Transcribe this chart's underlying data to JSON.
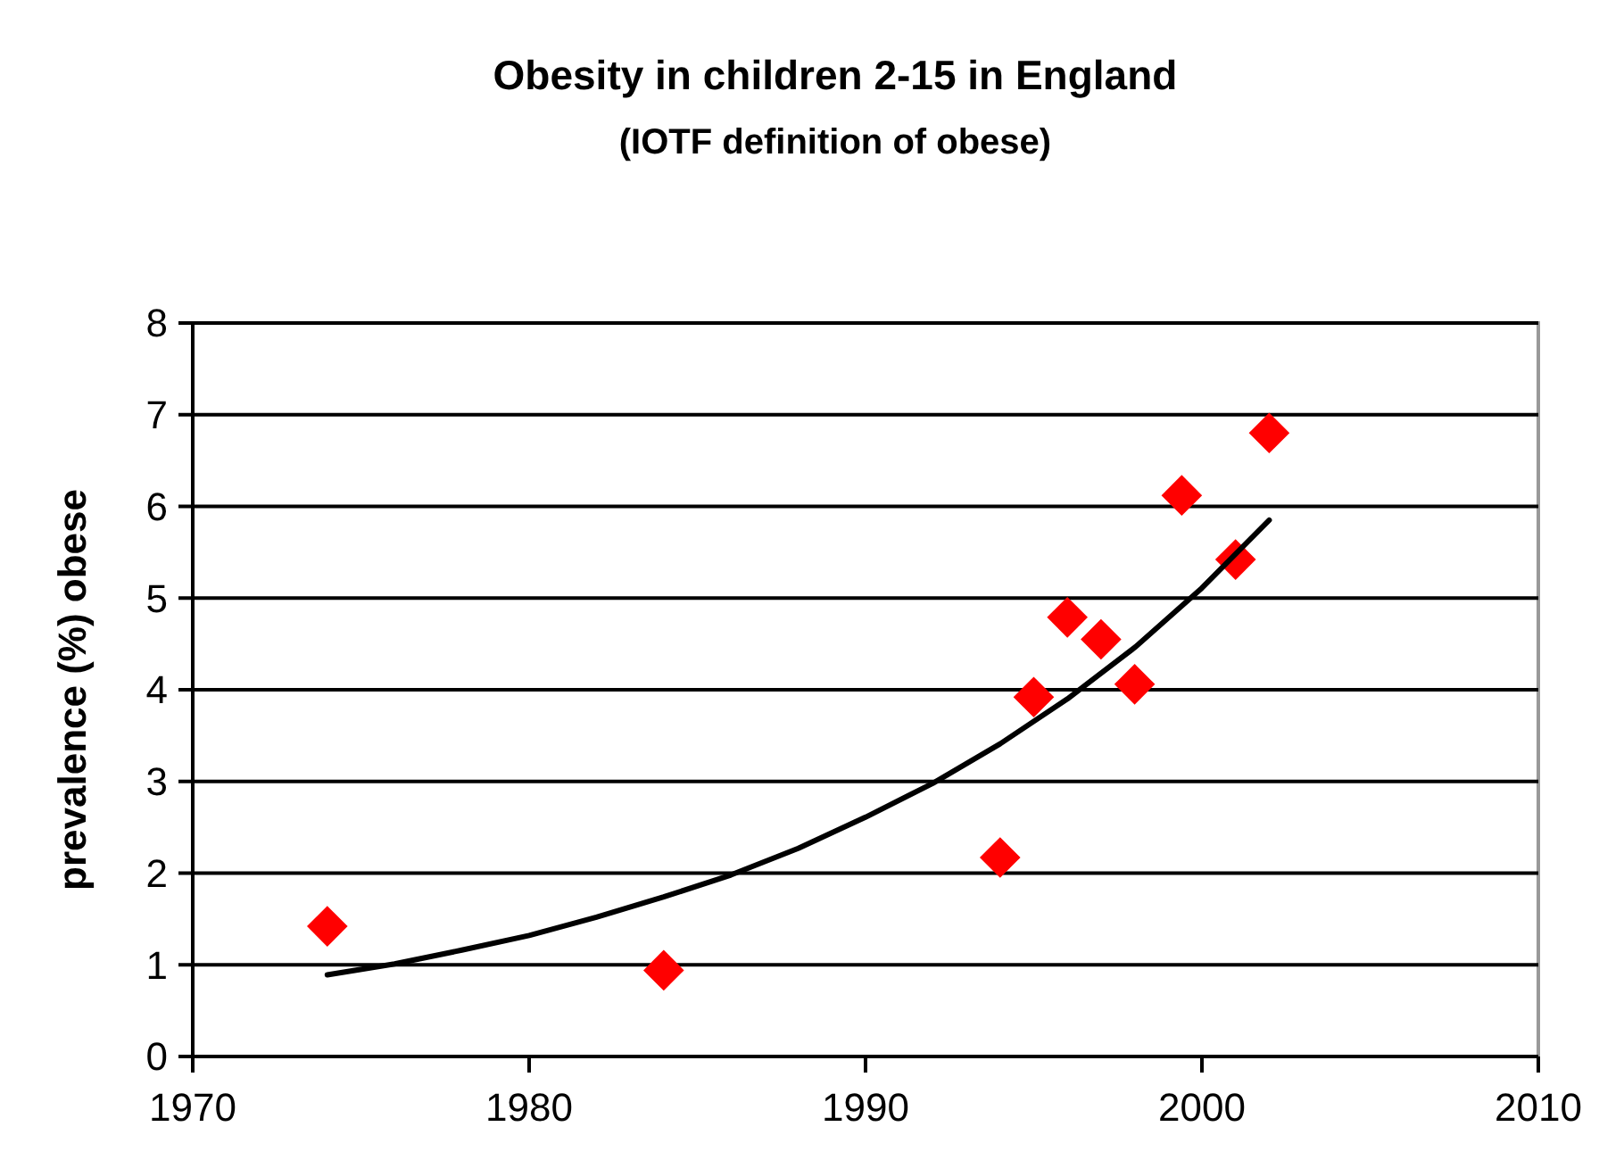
{
  "chart_data": {
    "type": "scatter",
    "title": "Obesity in children 2-15 in England",
    "subtitle": "(IOTF definition of obese)",
    "ylabel": "prevalence (%) obese",
    "xlim": [
      1970,
      2010
    ],
    "xticks": [
      1970,
      1980,
      1990,
      2000,
      2010
    ],
    "ylim": [
      0,
      8
    ],
    "yticks": [
      0,
      1,
      2,
      3,
      4,
      5,
      6,
      7,
      8
    ],
    "grid": "y",
    "series": [
      {
        "color": "#ff0000",
        "marker": "diamond",
        "x": [
          1974,
          1984,
          1994,
          1995,
          1996,
          1997,
          1998,
          1999.4,
          2001,
          2002
        ],
        "values": [
          1.42,
          0.94,
          2.17,
          3.92,
          4.79,
          4.55,
          4.06,
          6.12,
          5.42,
          6.8
        ]
      },
      {
        "type": "line",
        "color": "#000000",
        "marker": "none",
        "line_style": "solid",
        "x": [
          1974,
          1976,
          1978,
          1980,
          1982,
          1984,
          1986,
          1988,
          1990,
          1992,
          1994,
          1996,
          1998,
          2000,
          2002
        ],
        "values": [
          0.89,
          1.01,
          1.16,
          1.32,
          1.52,
          1.74,
          1.98,
          2.27,
          2.61,
          2.98,
          3.41,
          3.9,
          4.46,
          5.11,
          5.85
        ]
      }
    ]
  }
}
